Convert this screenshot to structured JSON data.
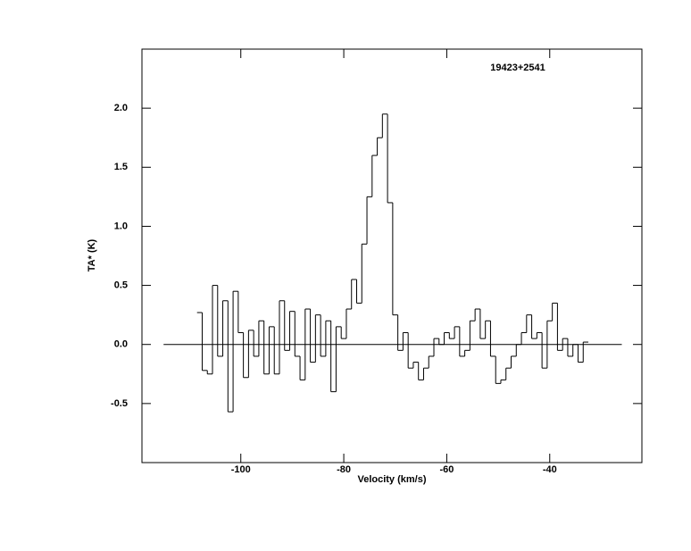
{
  "chart_data": {
    "type": "step",
    "title": "19423+2541",
    "x_label": "Velocity (km/s)",
    "y_label": "TA* (K)",
    "xlim": [
      -119.2,
      -22.1
    ],
    "ylim": [
      -1.0,
      2.5
    ],
    "xticks": [
      -100,
      -80,
      -60,
      -40
    ],
    "yticks": [
      -0.5,
      {
        "value": 0,
        "label": "0.0"
      },
      0.5,
      {
        "value": 1,
        "label": "1.0"
      },
      1.5,
      {
        "value": 2,
        "label": "2.0"
      }
    ],
    "baseline": {
      "y": 0,
      "x": [
        -115,
        -26
      ]
    },
    "color": "#000000",
    "x": [
      -108,
      -107,
      -106,
      -105,
      -104,
      -103,
      -102,
      -101,
      -100,
      -99,
      -98,
      -97,
      -96,
      -95,
      -94,
      -93,
      -92,
      -91,
      -90,
      -89,
      -88,
      -87,
      -86,
      -85,
      -84,
      -83,
      -82,
      -81,
      -80,
      -79,
      -78,
      -77,
      -76,
      -75,
      -74,
      -73,
      -72,
      -71,
      -70,
      -69,
      -68,
      -67,
      -66,
      -65,
      -64,
      -63,
      -62,
      -61,
      -60,
      -59,
      -58,
      -57,
      -56,
      -55,
      -54,
      -53,
      -52,
      -51,
      -50,
      -49,
      -48,
      -47,
      -46,
      -45,
      -44,
      -43,
      -42,
      -41,
      -40,
      -39,
      -38,
      -37,
      -36,
      -35,
      -34,
      -33
    ],
    "values": [
      0.27,
      -0.22,
      -0.25,
      0.5,
      -0.1,
      0.37,
      -0.57,
      0.45,
      0.1,
      -0.28,
      0.12,
      -0.1,
      0.2,
      -0.25,
      0.15,
      -0.25,
      0.37,
      -0.05,
      0.28,
      -0.1,
      -0.3,
      0.3,
      -0.15,
      0.25,
      -0.1,
      0.2,
      -0.4,
      0.15,
      0.05,
      0.3,
      0.55,
      0.35,
      0.85,
      1.25,
      1.6,
      1.75,
      1.95,
      1.2,
      0.25,
      -0.05,
      0.1,
      -0.2,
      -0.15,
      -0.3,
      -0.2,
      -0.1,
      0.05,
      0,
      0.1,
      0.05,
      0.15,
      -0.1,
      -0.05,
      0.2,
      0.3,
      0.05,
      0.2,
      -0.1,
      -0.33,
      -0.3,
      -0.2,
      -0.1,
      0,
      0.1,
      0.25,
      0.05,
      0.1,
      -0.2,
      0.2,
      0.35,
      -0.05,
      0.05,
      -0.1,
      0,
      -0.15,
      0.02
    ]
  }
}
